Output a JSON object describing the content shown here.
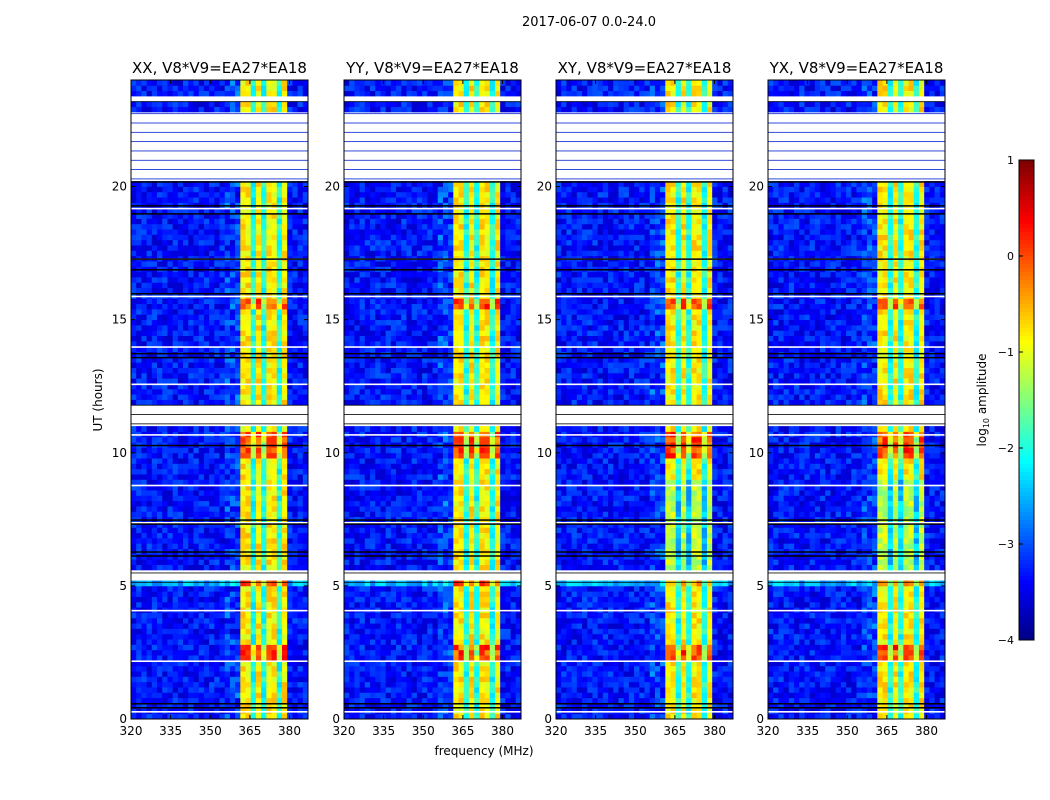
{
  "chart_data": {
    "type": "heatmap",
    "suptitle": "2017-06-07 0.0-24.0",
    "xlabel": "frequency (MHz)",
    "ylabel": "UT (hours)",
    "xlim": [
      320,
      387
    ],
    "ylim": [
      0,
      24
    ],
    "xticks": [
      320,
      335,
      350,
      365,
      380
    ],
    "xtick_labels": [
      "320",
      "335",
      "350",
      "365",
      "380"
    ],
    "yticks": [
      0,
      5,
      10,
      15,
      20
    ],
    "ytick_labels": [
      "0",
      "5",
      "10",
      "15",
      "20"
    ],
    "panels": [
      {
        "title": "XX, V8*V9=EA27*EA18"
      },
      {
        "title": "YY, V8*V9=EA27*EA18"
      },
      {
        "title": "XY, V8*V9=EA27*EA18"
      },
      {
        "title": "YX, V8*V9=EA27*EA18"
      }
    ],
    "background_log_amplitude": -3.3,
    "bright_band_mhz": [
      362,
      380
    ],
    "bright_band_log_amplitude": -0.8,
    "strong_rfi_hours": [
      [
        15.4,
        15.9
      ],
      [
        2.2,
        2.9
      ],
      [
        9.8,
        10.8
      ]
    ],
    "flagged_hours": [
      [
        11.1,
        11.9
      ],
      [
        20.3,
        22.8
      ],
      [
        5.15,
        5.6
      ],
      [
        23.2,
        23.5
      ]
    ],
    "colorbar": {
      "label": "log10 amplitude",
      "label_main": "log",
      "label_sub": "10",
      "label_rest": " amplitude",
      "range": [
        -4,
        1
      ],
      "ticks": [
        1,
        0,
        -1,
        -2,
        -3,
        -4
      ],
      "tick_labels": [
        "1",
        "0",
        "−1",
        "−2",
        "−3",
        "−4"
      ],
      "colormap": "jet"
    }
  }
}
